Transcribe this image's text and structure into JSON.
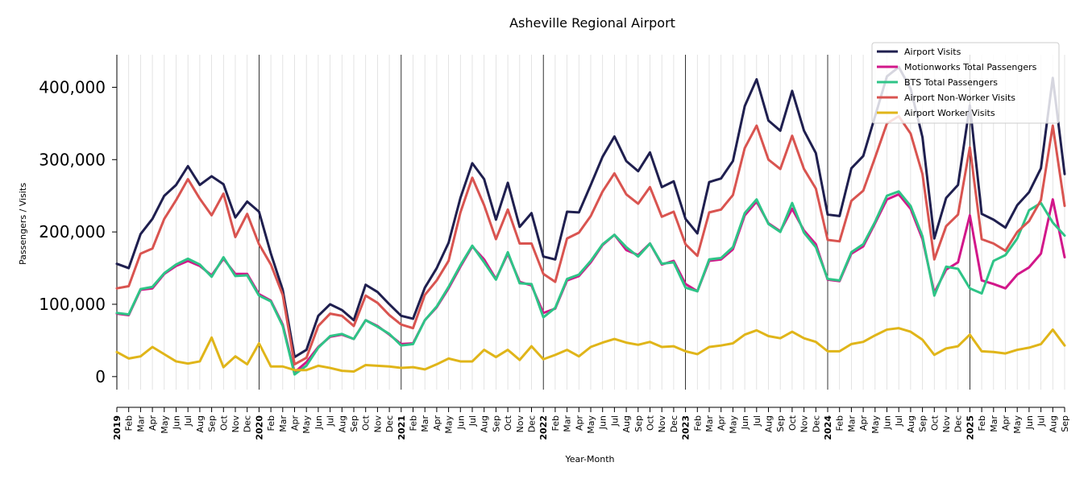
{
  "chart_data": {
    "type": "line",
    "title": "Asheville Regional Airport",
    "xlabel": "Year-Month",
    "ylabel": "Passengers / Visits",
    "ylim": [
      -18000,
      445000
    ],
    "yticks": [
      0,
      100000,
      200000,
      300000,
      400000
    ],
    "ytick_labels": [
      "0",
      "100,000",
      "200,000",
      "300,000",
      "400,000"
    ],
    "legend_position": "top-right",
    "grid": "vertical monthly lines, darker at year boundaries",
    "x_months": [
      "2019",
      "Feb",
      "Mar",
      "Apr",
      "May",
      "Jun",
      "Jul",
      "Aug",
      "Sep",
      "Oct",
      "Nov",
      "Dec",
      "2020",
      "Feb",
      "Mar",
      "Apr",
      "May",
      "Jun",
      "Jul",
      "Aug",
      "Sep",
      "Oct",
      "Nov",
      "Dec",
      "2021",
      "Feb",
      "Mar",
      "Apr",
      "May",
      "Jun",
      "Jul",
      "Aug",
      "Sep",
      "Oct",
      "Nov",
      "Dec",
      "2022",
      "Feb",
      "Mar",
      "Apr",
      "May",
      "Jun",
      "Jul",
      "Aug",
      "Sep",
      "Oct",
      "Nov",
      "Dec",
      "2023",
      "Feb",
      "Mar",
      "Apr",
      "May",
      "Jun",
      "Jul",
      "Aug",
      "Sep",
      "Oct",
      "Nov",
      "Dec",
      "2024",
      "Feb",
      "Mar",
      "Apr",
      "May",
      "Jun",
      "Jul",
      "Aug",
      "Sep",
      "Oct",
      "Nov",
      "Dec",
      "2025",
      "Feb",
      "Mar",
      "Apr",
      "May",
      "Jun",
      "Jul",
      "Aug",
      "Sep"
    ],
    "series": [
      {
        "name": "Airport Visits",
        "color": "#1f1f4f",
        "values": [
          156000,
          150000,
          197000,
          218000,
          250000,
          265000,
          291000,
          265000,
          277000,
          266000,
          220000,
          242000,
          228000,
          170000,
          120000,
          27000,
          37000,
          84000,
          100000,
          92000,
          78000,
          127000,
          117000,
          100000,
          84000,
          80000,
          123000,
          150000,
          185000,
          247000,
          295000,
          273000,
          217000,
          268000,
          207000,
          226000,
          166000,
          162000,
          228000,
          227000,
          265000,
          304000,
          332000,
          298000,
          284000,
          310000,
          262000,
          270000,
          218000,
          198000,
          269000,
          274000,
          298000,
          374000,
          411000,
          354000,
          340000,
          395000,
          340000,
          309000,
          224000,
          222000,
          288000,
          305000,
          360000,
          415000,
          428000,
          398000,
          331000,
          191000,
          247000,
          265000,
          375000,
          225000,
          217000,
          206000,
          237000,
          255000,
          288000,
          413000,
          280000
        ]
      },
      {
        "name": "Motionworks Total Passengers",
        "color": "#d2178a",
        "values": [
          87000,
          85000,
          120000,
          122000,
          142000,
          153000,
          160000,
          153000,
          140000,
          163000,
          142000,
          142000,
          114000,
          105000,
          72000,
          6000,
          20000,
          41000,
          55000,
          58000,
          52000,
          78000,
          70000,
          58000,
          45000,
          46000,
          78000,
          96000,
          122000,
          152000,
          180000,
          162000,
          135000,
          170000,
          131000,
          126000,
          88000,
          94000,
          133000,
          139000,
          158000,
          182000,
          196000,
          175000,
          168000,
          184000,
          155000,
          160000,
          128000,
          118000,
          160000,
          162000,
          176000,
          223000,
          242000,
          212000,
          201000,
          232000,
          202000,
          183000,
          134000,
          132000,
          170000,
          180000,
          212000,
          245000,
          252000,
          232000,
          190000,
          116000,
          148000,
          158000,
          223000,
          133000,
          128000,
          122000,
          141000,
          151000,
          170000,
          245000,
          165000
        ]
      },
      {
        "name": "BTS Total Passengers",
        "color": "#2ec487",
        "values": [
          88000,
          86000,
          121000,
          124000,
          143000,
          155000,
          163000,
          155000,
          138000,
          165000,
          139000,
          140000,
          112000,
          104000,
          70000,
          3000,
          15000,
          40000,
          56000,
          59000,
          52000,
          78000,
          69000,
          59000,
          43000,
          45000,
          78000,
          97000,
          124000,
          154000,
          181000,
          158000,
          134000,
          172000,
          129000,
          128000,
          82000,
          95000,
          135000,
          141000,
          160000,
          183000,
          196000,
          179000,
          166000,
          184000,
          156000,
          158000,
          123000,
          118000,
          162000,
          164000,
          179000,
          226000,
          245000,
          211000,
          200000,
          240000,
          199000,
          179000,
          135000,
          133000,
          172000,
          183000,
          214000,
          250000,
          256000,
          236000,
          194000,
          112000,
          152000,
          149000,
          122000,
          115000,
          160000,
          168000,
          191000,
          230000,
          240000,
          213000,
          195000
        ]
      },
      {
        "name": "Airport Non-Worker Visits",
        "color": "#d95450",
        "values": [
          122000,
          125000,
          170000,
          177000,
          218000,
          244000,
          273000,
          246000,
          223000,
          253000,
          193000,
          225000,
          183000,
          155000,
          113000,
          17000,
          26000,
          70000,
          87000,
          84000,
          70000,
          112000,
          102000,
          85000,
          72000,
          67000,
          113000,
          133000,
          160000,
          227000,
          275000,
          237000,
          190000,
          231000,
          184000,
          184000,
          142000,
          131000,
          191000,
          199000,
          222000,
          256000,
          281000,
          252000,
          239000,
          262000,
          221000,
          228000,
          183000,
          167000,
          227000,
          231000,
          251000,
          316000,
          347000,
          300000,
          287000,
          333000,
          287000,
          260000,
          189000,
          187000,
          243000,
          257000,
          303000,
          350000,
          360000,
          336000,
          280000,
          162000,
          208000,
          224000,
          317000,
          190000,
          184000,
          174000,
          200000,
          215000,
          244000,
          347000,
          236000
        ]
      },
      {
        "name": "Airport Worker Visits",
        "color": "#e0b519",
        "values": [
          34000,
          25000,
          28000,
          41000,
          31000,
          21000,
          18000,
          21000,
          54000,
          13000,
          28000,
          17000,
          46000,
          14000,
          14000,
          9000,
          9000,
          15000,
          12000,
          8000,
          7000,
          16000,
          15000,
          14000,
          12000,
          13000,
          10000,
          17000,
          25000,
          21000,
          21000,
          37000,
          27000,
          37000,
          23000,
          42000,
          24000,
          30000,
          37000,
          28000,
          41000,
          47000,
          52000,
          47000,
          44000,
          48000,
          41000,
          42000,
          35000,
          31000,
          41000,
          43000,
          46000,
          58000,
          64000,
          56000,
          53000,
          62000,
          53000,
          48000,
          35000,
          35000,
          45000,
          48000,
          57000,
          65000,
          67000,
          62000,
          51000,
          30000,
          39000,
          42000,
          58000,
          35000,
          34000,
          32000,
          37000,
          40000,
          45000,
          65000,
          43000
        ]
      }
    ]
  }
}
